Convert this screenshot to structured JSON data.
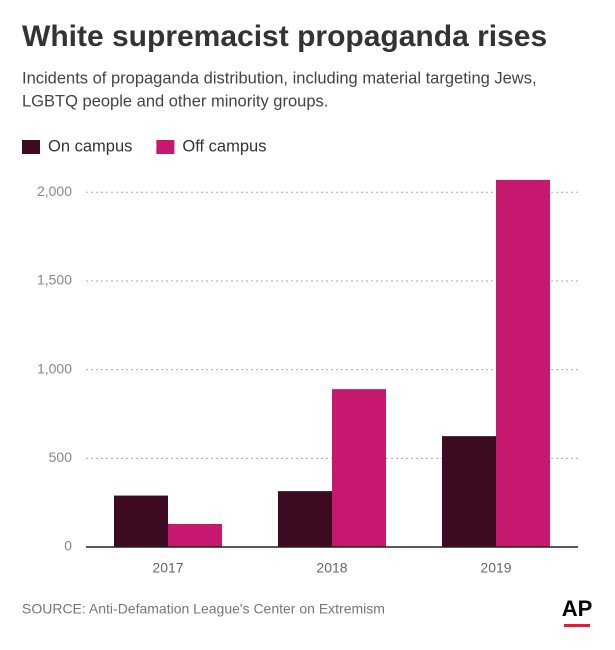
{
  "chart_data": {
    "type": "bar",
    "title": "White supremacist propaganda rises",
    "subtitle": [
      "Incidents of propaganda distribution, including material targeting Jews,",
      "LGBTQ people and other minority groups."
    ],
    "categories": [
      "2017",
      "2018",
      "2019"
    ],
    "series": [
      {
        "name": "On campus",
        "color": "#3d0a22",
        "values": [
          290,
          315,
          625
        ]
      },
      {
        "name": "Off campus",
        "color": "#c6186f",
        "values": [
          130,
          890,
          2070
        ]
      }
    ],
    "ylim": [
      0,
      2120
    ],
    "yticks": [
      0,
      500,
      {
        "value": 1000,
        "label": "1,000"
      },
      {
        "value": 1500,
        "label": "1,500"
      },
      {
        "value": 2000,
        "label": "2,000"
      }
    ],
    "grid": true,
    "legend": "top-left",
    "source": "SOURCE: Anti-Defamation League's Center on Extremism",
    "logo": "AP"
  }
}
